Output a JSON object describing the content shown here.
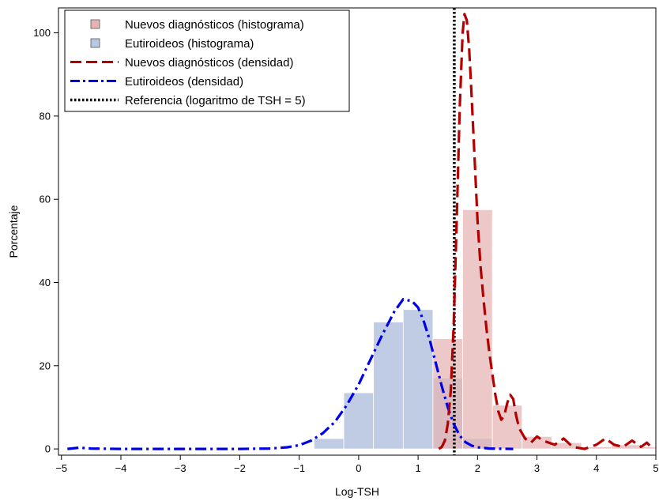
{
  "chart_data": {
    "type": "bar",
    "xlabel": "Log-TSH",
    "ylabel": "Porcentaje",
    "xlim": [
      -5.05,
      5.0
    ],
    "ylim": [
      -1.5,
      106
    ],
    "xticks": [
      "-5",
      "-4",
      "-3",
      "-2",
      "-1",
      "0",
      "1",
      "2",
      "3",
      "4",
      "5"
    ],
    "yticks": [
      "0",
      "20",
      "40",
      "60",
      "80",
      "100"
    ],
    "bin_width": 0.5,
    "legend": {
      "position": "top-left",
      "entries": [
        "Nuevos diagnósticos (histograma)",
        "Eutiroideos (histograma)",
        "Nuevos diagnósticos (densidad)",
        "Eutiroideos (densidad)",
        "Referencia (logaritmo de TSH = 5)"
      ]
    },
    "colors": {
      "new_hist": "#e6b3b3",
      "euth_hist": "#b8c7e0",
      "new_density": "#b30000",
      "euth_density": "#0000e6",
      "reference": "#000000"
    },
    "histograms": [
      {
        "series": "Eutiroideos (histograma)",
        "bins": [
          {
            "x0": -0.75,
            "x1": -0.25,
            "value": 2.5
          },
          {
            "x0": -0.25,
            "x1": 0.25,
            "value": 13.5
          },
          {
            "x0": 0.25,
            "x1": 0.75,
            "value": 30.5
          },
          {
            "x0": 0.75,
            "x1": 1.25,
            "value": 33.5
          },
          {
            "x0": 1.25,
            "x1": 1.75,
            "value": 17.0
          },
          {
            "x0": 1.75,
            "x1": 2.25,
            "value": 2.5
          }
        ]
      },
      {
        "series": "Nuevos diagnósticos (histograma)",
        "bins": [
          {
            "x0": 1.25,
            "x1": 1.75,
            "value": 26.5
          },
          {
            "x0": 1.75,
            "x1": 2.25,
            "value": 57.5
          },
          {
            "x0": 2.25,
            "x1": 2.75,
            "value": 10.5
          },
          {
            "x0": 2.75,
            "x1": 3.25,
            "value": 3.0
          },
          {
            "x0": 3.25,
            "x1": 3.75,
            "value": 1.5
          },
          {
            "x0": 3.75,
            "x1": 4.25,
            "value": 0.5
          },
          {
            "x0": 4.25,
            "x1": 4.75,
            "value": 1.0
          },
          {
            "x0": 4.75,
            "x1": 5.0,
            "value": 0.5
          }
        ]
      }
    ],
    "densities": [
      {
        "series": "Eutiroideos (densidad)",
        "points": [
          [
            -4.9,
            0.0
          ],
          [
            -4.7,
            0.3
          ],
          [
            -4.5,
            0.1
          ],
          [
            -4.0,
            0.0
          ],
          [
            -3.0,
            0.0
          ],
          [
            -2.0,
            0.0
          ],
          [
            -1.5,
            0.1
          ],
          [
            -1.2,
            0.4
          ],
          [
            -1.0,
            0.9
          ],
          [
            -0.8,
            2.0
          ],
          [
            -0.6,
            3.8
          ],
          [
            -0.4,
            6.5
          ],
          [
            -0.2,
            10.5
          ],
          [
            0.0,
            15.5
          ],
          [
            0.2,
            21.5
          ],
          [
            0.4,
            27.5
          ],
          [
            0.6,
            33.0
          ],
          [
            0.75,
            36.0
          ],
          [
            0.9,
            35.5
          ],
          [
            1.0,
            34.0
          ],
          [
            1.1,
            30.5
          ],
          [
            1.2,
            26.0
          ],
          [
            1.3,
            20.5
          ],
          [
            1.4,
            15.0
          ],
          [
            1.5,
            10.0
          ],
          [
            1.6,
            6.0
          ],
          [
            1.7,
            3.2
          ],
          [
            1.8,
            1.6
          ],
          [
            1.9,
            0.8
          ],
          [
            2.0,
            0.4
          ],
          [
            2.2,
            0.1
          ],
          [
            2.6,
            0.0
          ]
        ]
      },
      {
        "series": "Nuevos diagnósticos (densidad)",
        "points": [
          [
            1.35,
            0.0
          ],
          [
            1.4,
            0.5
          ],
          [
            1.45,
            2.0
          ],
          [
            1.5,
            6.0
          ],
          [
            1.55,
            14.0
          ],
          [
            1.6,
            30.0
          ],
          [
            1.65,
            55.0
          ],
          [
            1.7,
            82.0
          ],
          [
            1.75,
            100.0
          ],
          [
            1.78,
            104.5
          ],
          [
            1.82,
            103.0
          ],
          [
            1.86,
            96.0
          ],
          [
            1.9,
            85.0
          ],
          [
            1.95,
            70.0
          ],
          [
            2.0,
            55.0
          ],
          [
            2.05,
            44.0
          ],
          [
            2.1,
            36.0
          ],
          [
            2.15,
            29.0
          ],
          [
            2.2,
            23.0
          ],
          [
            2.25,
            18.0
          ],
          [
            2.3,
            13.0
          ],
          [
            2.35,
            9.0
          ],
          [
            2.4,
            7.0
          ],
          [
            2.45,
            8.0
          ],
          [
            2.5,
            11.0
          ],
          [
            2.55,
            13.0
          ],
          [
            2.6,
            12.0
          ],
          [
            2.65,
            8.0
          ],
          [
            2.7,
            5.0
          ],
          [
            2.8,
            2.5
          ],
          [
            2.9,
            1.5
          ],
          [
            3.0,
            3.0
          ],
          [
            3.1,
            2.0
          ],
          [
            3.2,
            1.5
          ],
          [
            3.3,
            1.0
          ],
          [
            3.45,
            2.5
          ],
          [
            3.6,
            0.5
          ],
          [
            3.8,
            0.0
          ],
          [
            4.0,
            1.0
          ],
          [
            4.15,
            2.5
          ],
          [
            4.3,
            1.0
          ],
          [
            4.45,
            0.5
          ],
          [
            4.6,
            2.0
          ],
          [
            4.75,
            0.5
          ],
          [
            4.85,
            1.5
          ],
          [
            4.95,
            0.0
          ]
        ]
      }
    ],
    "reference_line_x": 1.609
  }
}
